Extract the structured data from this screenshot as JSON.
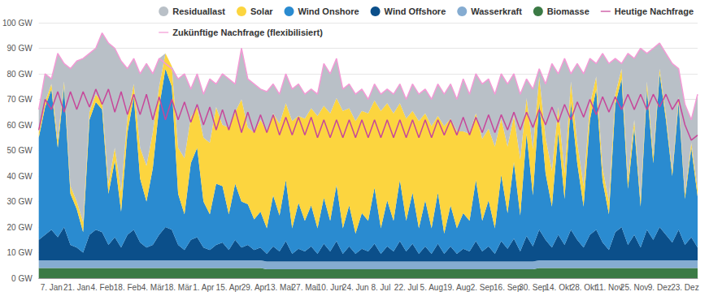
{
  "chart_data": {
    "type": "area",
    "stacked": true,
    "grid": true,
    "legend": "top",
    "categories": [
      null,
      null,
      "7. Jan",
      null,
      null,
      null,
      "21. Jan",
      null,
      null,
      null,
      "4. Feb",
      null,
      null,
      null,
      "18. Feb",
      null,
      null,
      null,
      "4. Mär",
      null,
      null,
      null,
      "18. Mär",
      null,
      null,
      null,
      "1. Apr",
      null,
      null,
      null,
      "15. Apr",
      null,
      null,
      null,
      "29. Apr",
      null,
      null,
      null,
      "13. Mai",
      null,
      null,
      null,
      "27. Mai",
      null,
      null,
      null,
      "10. Jun",
      null,
      null,
      null,
      "24. Jun",
      null,
      null,
      null,
      "8. Jul",
      null,
      null,
      null,
      "22. Jul",
      null,
      null,
      null,
      "5. Aug",
      null,
      null,
      null,
      "19. Aug",
      null,
      null,
      null,
      "2. Sep",
      null,
      null,
      null,
      "16. Sep",
      null,
      null,
      null,
      "30. Sep",
      null,
      null,
      null,
      "14. Okt",
      null,
      null,
      null,
      "28. Okt",
      null,
      null,
      null,
      "11. Nov",
      null,
      null,
      null,
      "25. Nov",
      null,
      null,
      null,
      "9. Dez",
      null,
      null,
      null,
      "23. Dez",
      null,
      null
    ],
    "ylim": [
      0,
      100
    ],
    "yticks": [
      {
        "value": 0,
        "label": "0 GW"
      },
      {
        "value": 10,
        "label": "10 GW"
      },
      {
        "value": 20,
        "label": "20 GW"
      },
      {
        "value": 30,
        "label": "30 GW"
      },
      {
        "value": 40,
        "label": "40 GW"
      },
      {
        "value": 50,
        "label": "50 GW"
      },
      {
        "value": 60,
        "label": "60 GW"
      },
      {
        "value": 70,
        "label": "70 GW"
      },
      {
        "value": 80,
        "label": "80 GW"
      },
      {
        "value": 90,
        "label": "90 GW"
      },
      {
        "value": 100,
        "label": "100 GW"
      }
    ],
    "series": [
      {
        "name": "Residuallast",
        "type": "area",
        "color": "#b9c0c7",
        "values": [
          9,
          11,
          2,
          34,
          7,
          46,
          55,
          64,
          23,
          18,
          27,
          55,
          39,
          51,
          19,
          10,
          29,
          40,
          23,
          11,
          0,
          0,
          27,
          33,
          11,
          13,
          17,
          25,
          9,
          20,
          19,
          11,
          20,
          19,
          19,
          12,
          15.5,
          11.5,
          11.5,
          11.5,
          12.5,
          12.5,
          9.5,
          7.5,
          8.5,
          16.5,
          15.5,
          15.5,
          8.5,
          9.5,
          10.5,
          8.5,
          5.5,
          6.5,
          6.5,
          5.5,
          7.5,
          7.5,
          7.5,
          10.5,
          10.5,
          9.5,
          10.5,
          12.5,
          12.5,
          13.5,
          12.5,
          20.5,
          15.5,
          15.5,
          21.5,
          19.5,
          20.5,
          17.5,
          24.5,
          16.5,
          25.5,
          7.5,
          23.5,
          3,
          21,
          42,
          13,
          45,
          3,
          31,
          44,
          18,
          5,
          45,
          54,
          14,
          2,
          49,
          24,
          59,
          11,
          42,
          10,
          24,
          42,
          11,
          35,
          9,
          37
        ]
      },
      {
        "name": "Solar",
        "type": "area",
        "color": "#fcd53f",
        "values": [
          2,
          2,
          2,
          3,
          2,
          3,
          3,
          4,
          3,
          3,
          3,
          4,
          5,
          8,
          6,
          5,
          12,
          14,
          14,
          8,
          6,
          8,
          18,
          22,
          18,
          16,
          25,
          28,
          30,
          24,
          34,
          28,
          40,
          30,
          34,
          36,
          38,
          32,
          36,
          30,
          42,
          34,
          40,
          38,
          44,
          36,
          42,
          34,
          46,
          38,
          44,
          40,
          42,
          34,
          46,
          38,
          42,
          30,
          40,
          32,
          42,
          34,
          40,
          30,
          42,
          34,
          38,
          32,
          34,
          26,
          32,
          28,
          32,
          22,
          26,
          18,
          22,
          14,
          18,
          10,
          14,
          14,
          10,
          10,
          8,
          8,
          8,
          6,
          5,
          5,
          5,
          4,
          4,
          4,
          3,
          3,
          3,
          3,
          2,
          2,
          2,
          2,
          2,
          2,
          3
        ]
      },
      {
        "name": "Wind Onshore",
        "type": "area",
        "color": "#2a8bd0",
        "values": [
          40,
          50,
          55,
          35,
          55,
          20,
          15,
          8,
          45,
          50,
          48,
          20,
          30,
          14,
          40,
          52,
          25,
          18,
          30,
          50,
          62,
          56,
          20,
          14,
          30,
          35,
          18,
          14,
          24,
          22,
          14,
          22,
          18,
          16,
          12,
          14,
          10,
          20,
          14,
          24,
          10,
          18,
          12,
          16,
          10,
          18,
          12,
          22,
          10,
          16,
          8,
          14,
          12,
          22,
          10,
          18,
          12,
          24,
          12,
          20,
          10,
          18,
          10,
          20,
          8,
          16,
          10,
          14,
          12,
          24,
          12,
          18,
          10,
          26,
          14,
          30,
          14,
          40,
          20,
          50,
          26,
          16,
          40,
          18,
          50,
          30,
          16,
          45,
          55,
          24,
          14,
          50,
          58,
          22,
          42,
          16,
          55,
          30,
          60,
          45,
          26,
          50,
          18,
          35,
          20
        ]
      },
      {
        "name": "Wind Offshore",
        "type": "area",
        "color": "#0b4f8a",
        "values": [
          8,
          10,
          12,
          9,
          13,
          6,
          5,
          3,
          10,
          12,
          11,
          6,
          9,
          5,
          10,
          12,
          7,
          5,
          6,
          10,
          13,
          12,
          6,
          4,
          8,
          9,
          5,
          4,
          6,
          7,
          4,
          8,
          5,
          6,
          4,
          5,
          3,
          6,
          4,
          8,
          3,
          5,
          4,
          6,
          3,
          7,
          4,
          8,
          3,
          6,
          3,
          5,
          4,
          7,
          3,
          6,
          4,
          8,
          4,
          7,
          3,
          6,
          3,
          7,
          3,
          6,
          3,
          5,
          4,
          8,
          4,
          6,
          3,
          8,
          5,
          9,
          4,
          10,
          6,
          12,
          8,
          5,
          10,
          6,
          12,
          8,
          5,
          10,
          12,
          7,
          4,
          11,
          13,
          6,
          10,
          5,
          12,
          8,
          13,
          10,
          7,
          12,
          6,
          9,
          5
        ]
      },
      {
        "name": "Wasserkraft",
        "type": "area",
        "color": "#85acd1",
        "values": [
          3,
          3,
          3,
          3,
          3,
          3,
          3,
          3,
          3,
          3,
          3,
          3,
          3,
          3,
          3,
          3,
          3,
          3,
          3,
          3,
          3,
          3,
          3,
          3,
          3,
          3,
          3,
          3,
          3,
          3,
          3,
          3,
          3,
          3,
          3,
          3,
          3,
          3,
          3,
          3,
          3,
          3,
          3,
          3,
          3,
          3,
          3,
          3,
          3,
          3,
          3,
          3,
          3,
          3,
          3,
          3,
          3,
          3,
          3,
          3,
          3,
          3,
          3,
          3,
          3,
          3,
          3,
          3,
          3,
          3,
          3,
          3,
          3,
          3,
          3,
          3,
          3,
          3,
          3,
          3,
          3,
          3,
          3,
          3,
          3,
          3,
          3,
          3,
          3,
          3,
          3,
          3,
          3,
          3,
          3,
          3,
          3,
          3,
          3,
          3,
          3,
          3,
          3,
          3,
          3
        ]
      },
      {
        "name": "Biomasse",
        "type": "area",
        "color": "#3b7a45",
        "values": [
          4,
          4,
          4,
          4,
          4,
          4,
          4,
          4,
          4,
          4,
          4,
          4,
          4,
          4,
          4,
          4,
          4,
          4,
          4,
          4,
          4,
          4,
          4,
          4,
          4,
          4,
          4,
          4,
          4,
          4,
          4,
          4,
          4,
          4,
          4,
          4,
          3.5,
          3.5,
          3.5,
          3.5,
          3.5,
          3.5,
          3.5,
          3.5,
          3.5,
          3.5,
          3.5,
          3.5,
          3.5,
          3.5,
          3.5,
          3.5,
          3.5,
          3.5,
          3.5,
          3.5,
          3.5,
          3.5,
          3.5,
          3.5,
          3.5,
          3.5,
          3.5,
          3.5,
          3.5,
          3.5,
          3.5,
          3.5,
          3.5,
          3.5,
          3.5,
          3.5,
          3.5,
          3.5,
          3.5,
          3.5,
          3.5,
          3.5,
          3.5,
          4,
          4,
          4,
          4,
          4,
          4,
          4,
          4,
          4,
          4,
          4,
          4,
          4,
          4,
          4,
          4,
          4,
          4,
          4,
          4,
          4,
          4,
          4,
          4,
          4,
          4
        ]
      },
      {
        "name": "Heutige Nachfrage",
        "type": "line",
        "color": "#c7479a",
        "values": [
          58,
          70,
          66,
          73,
          65,
          73,
          66,
          73,
          67,
          74,
          68,
          74,
          65,
          73,
          64,
          72,
          64,
          72,
          62,
          71,
          62,
          70,
          62,
          69,
          61,
          68,
          60,
          67,
          58,
          66,
          58,
          66,
          57,
          65,
          57,
          64,
          57,
          64,
          56,
          63,
          56,
          63,
          56,
          63,
          55,
          62,
          55,
          62,
          55,
          62,
          55,
          62,
          55,
          62,
          55,
          62,
          55,
          62,
          55,
          62,
          55,
          62,
          55,
          62,
          56,
          62,
          56,
          63,
          56,
          63,
          57,
          64,
          57,
          64,
          58,
          65,
          58,
          65,
          59,
          66,
          60,
          67,
          61,
          68,
          62,
          69,
          63,
          70,
          64,
          71,
          65,
          71,
          66,
          72,
          66,
          72,
          66,
          72,
          67,
          72,
          66,
          70,
          60,
          54,
          56
        ]
      },
      {
        "name": "Zukünftige Nachfrage (flexibilisiert)",
        "type": "line",
        "color": "#f49ad6",
        "values": [
          66,
          80,
          78,
          88,
          84,
          82,
          85,
          86,
          88,
          90,
          96,
          92,
          90,
          85,
          82,
          86,
          80,
          84,
          80,
          86,
          84,
          82,
          78,
          80,
          74,
          80,
          72,
          78,
          76,
          80,
          78,
          76,
          90,
          78,
          76,
          74,
          73,
          76,
          72,
          80,
          74,
          76,
          72,
          74,
          72,
          84,
          80,
          86,
          74,
          76,
          72,
          74,
          70,
          76,
          72,
          74,
          72,
          76,
          70,
          76,
          72,
          74,
          70,
          76,
          72,
          76,
          70,
          78,
          72,
          80,
          76,
          78,
          72,
          80,
          76,
          80,
          72,
          78,
          74,
          82,
          76,
          84,
          80,
          86,
          80,
          84,
          80,
          86,
          84,
          88,
          84,
          86,
          84,
          88,
          86,
          90,
          88,
          90,
          92,
          88,
          84,
          82,
          68,
          62,
          72
        ]
      }
    ]
  }
}
